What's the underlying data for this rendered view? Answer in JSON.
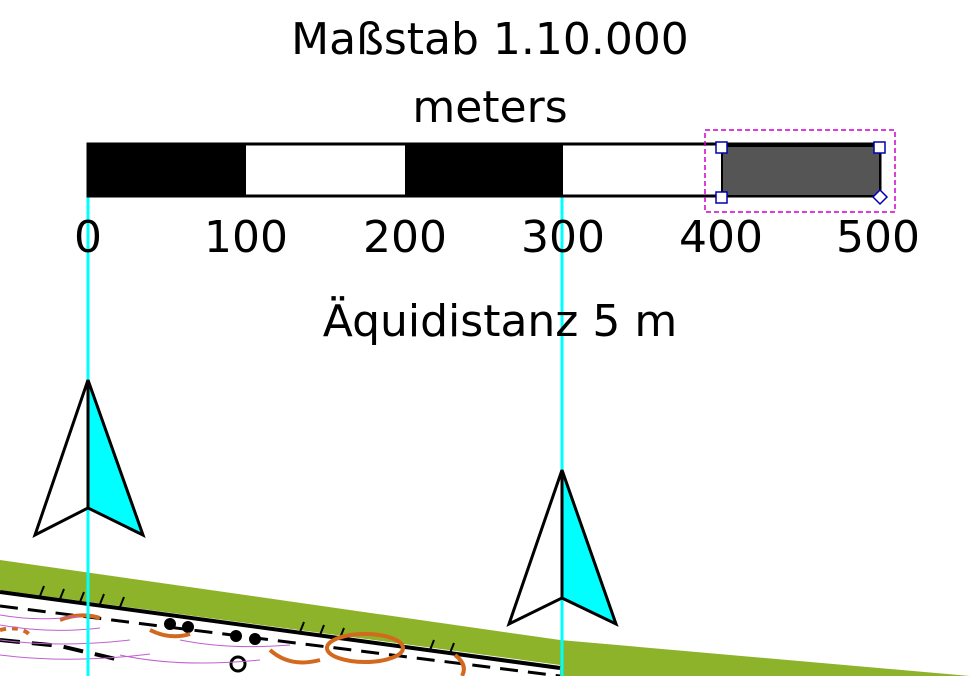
{
  "scale_bar": {
    "title": "Maßstab 1.10.000",
    "units": "meters",
    "ticks": [
      "0",
      "100",
      "200",
      "300",
      "400",
      "500"
    ],
    "selected_segment": "400–500"
  },
  "contour_interval": "Äquidistanz 5 m",
  "colors": {
    "north_line": "#00ffff",
    "selection_frame": "#cc00cc",
    "selection_handles": "#0000b0",
    "selected_fill": "#555555",
    "vegetation": "#8db32a",
    "contour_brown": "#d2691e",
    "terrain_purple": "#c060d0"
  },
  "icons": [
    "north-arrow-icon",
    "north-arrow-icon"
  ]
}
